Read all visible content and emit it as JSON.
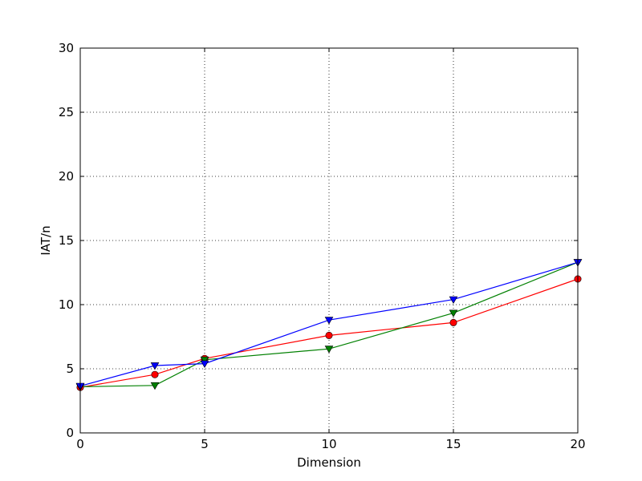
{
  "chart_data": {
    "type": "line",
    "xlabel": "Dimension",
    "ylabel": "IAT/n",
    "xlim": [
      0,
      20
    ],
    "ylim": [
      0,
      30
    ],
    "xticks": [
      0,
      5,
      10,
      15,
      20
    ],
    "yticks": [
      0,
      5,
      10,
      15,
      20,
      25,
      30
    ],
    "grid": true,
    "grid_style": "dotted",
    "x": [
      0,
      3,
      5,
      10,
      15,
      20
    ],
    "series": [
      {
        "color": "#ff0000",
        "marker": "circle",
        "values": [
          3.55,
          4.55,
          5.8,
          7.6,
          8.6,
          12.0
        ]
      },
      {
        "color": "#008000",
        "marker": "triangle-down",
        "values": [
          3.6,
          3.7,
          5.7,
          6.55,
          9.35,
          13.3
        ]
      },
      {
        "color": "#0000ff",
        "marker": "triangle-down",
        "values": [
          3.65,
          5.25,
          5.4,
          8.8,
          10.4,
          13.3
        ]
      }
    ]
  }
}
